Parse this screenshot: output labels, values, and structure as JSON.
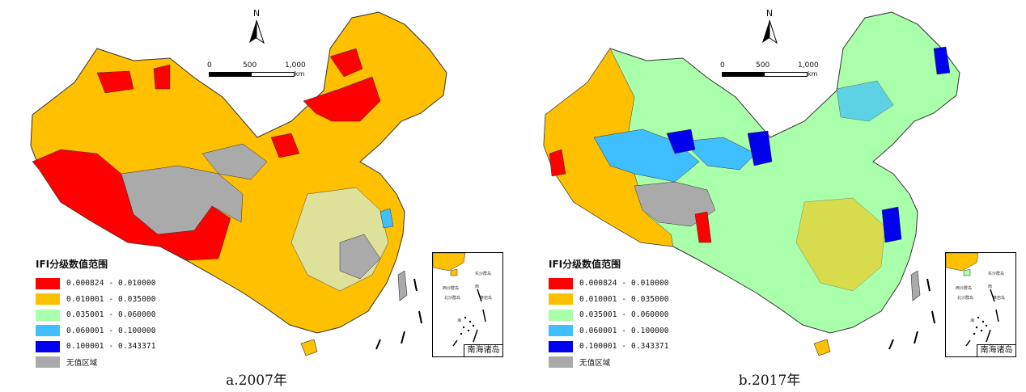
{
  "panels": [
    {
      "caption": "a.2007年",
      "north_letter": "N",
      "scale": {
        "ticks": [
          "0",
          "500",
          "1,000"
        ],
        "unit": "km"
      },
      "legend": {
        "title": "IFI分级数值范围",
        "items": [
          {
            "label": "0.000824 - 0.010000",
            "color": "#ff0000"
          },
          {
            "label": "0.010001 - 0.035000",
            "color": "#ffc000"
          },
          {
            "label": "0.035001 - 0.060000",
            "color": "#aaffaa"
          },
          {
            "label": "0.060001 - 0.100000",
            "color": "#3fbfff"
          },
          {
            "label": "0.100001 - 0.343371",
            "color": "#0000ee"
          },
          {
            "label": "无值区域",
            "color": "#aaaaaa"
          }
        ]
      },
      "inset": {
        "title": "南海诸岛",
        "labels": [
          "东沙群岛",
          "西沙群岛",
          "北沙群岛",
          "黄岩岛",
          "南",
          "海"
        ]
      },
      "dominant_classes": [
        "orange",
        "red",
        "gray",
        "green"
      ]
    },
    {
      "caption": "b.2017年",
      "north_letter": "N",
      "scale": {
        "ticks": [
          "0",
          "500",
          "1,000"
        ],
        "unit": "km"
      },
      "legend": {
        "title": "IFI分级数值范围",
        "items": [
          {
            "label": "0.000824 - 0.010000",
            "color": "#ff0000"
          },
          {
            "label": "0.010001 - 0.035000",
            "color": "#ffc000"
          },
          {
            "label": "0.035001 - 0.060000",
            "color": "#aaffaa"
          },
          {
            "label": "0.060001 - 0.100000",
            "color": "#3fbfff"
          },
          {
            "label": "0.100001 - 0.343371",
            "color": "#0000ee"
          },
          {
            "label": "无值区域",
            "color": "#aaaaaa"
          }
        ]
      },
      "inset": {
        "title": "南海诸岛",
        "labels": [
          "东沙群岛",
          "西沙群岛",
          "北沙群岛",
          "黄岩岛",
          "南",
          "海"
        ]
      },
      "dominant_classes": [
        "orange",
        "green",
        "light-blue",
        "blue",
        "gray"
      ]
    }
  ]
}
